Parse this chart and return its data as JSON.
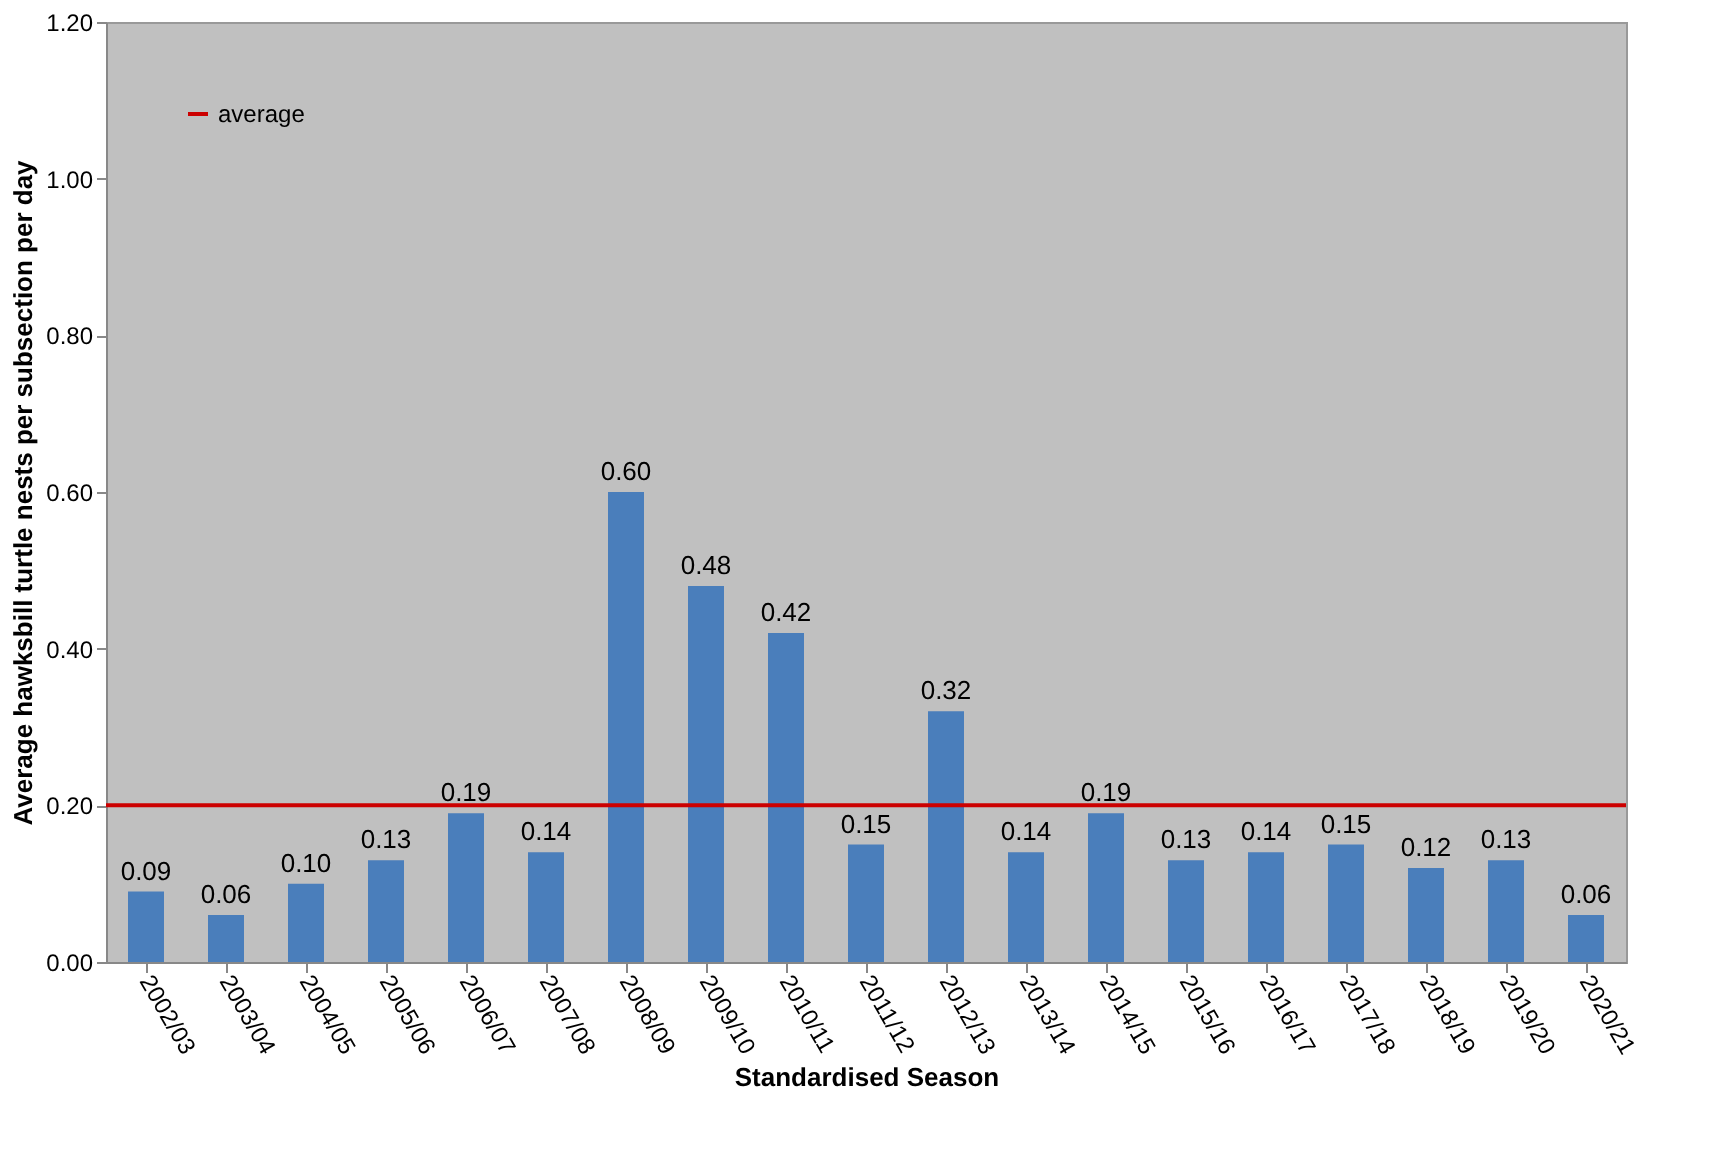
{
  "chart_data": {
    "type": "bar",
    "xlabel": "Standardised Season",
    "ylabel": "Average hawksbill turtle nests per subsection per day",
    "categories": [
      "2002/03",
      "2003/04",
      "2004/05",
      "2005/06",
      "2006/07",
      "2007/08",
      "2008/09",
      "2009/10",
      "2010/11",
      "2011/12",
      "2012/13",
      "2013/14",
      "2014/15",
      "2015/16",
      "2016/17",
      "2017/18",
      "2018/19",
      "2019/20",
      "2020/21"
    ],
    "values": [
      0.09,
      0.06,
      0.1,
      0.13,
      0.19,
      0.14,
      0.6,
      0.48,
      0.42,
      0.15,
      0.32,
      0.14,
      0.19,
      0.13,
      0.14,
      0.15,
      0.12,
      0.13,
      0.06
    ],
    "value_labels": [
      "0.09",
      "0.06",
      "0.10",
      "0.13",
      "0.19",
      "0.14",
      "0.60",
      "0.48",
      "0.42",
      "0.15",
      "0.32",
      "0.14",
      "0.19",
      "0.13",
      "0.14",
      "0.15",
      "0.12",
      "0.13",
      "0.06"
    ],
    "color": "#4a7ebb",
    "ylim": [
      0,
      1.2
    ],
    "yticks": [
      {
        "value": 0,
        "label": "0.00"
      },
      {
        "value": 0.2,
        "label": "0.20"
      },
      {
        "value": 0.4,
        "label": "0.40"
      },
      {
        "value": 0.6,
        "label": "0.60"
      },
      {
        "value": 0.8,
        "label": "0.80"
      },
      {
        "value": 1.0,
        "label": "1.00"
      },
      {
        "value": 1.2,
        "label": "1.20"
      }
    ],
    "ref_lines": [
      {
        "axis": "y",
        "value": 0.2,
        "label": "average",
        "color": "#cc0000"
      }
    ],
    "grid": false,
    "legend": "top left"
  }
}
